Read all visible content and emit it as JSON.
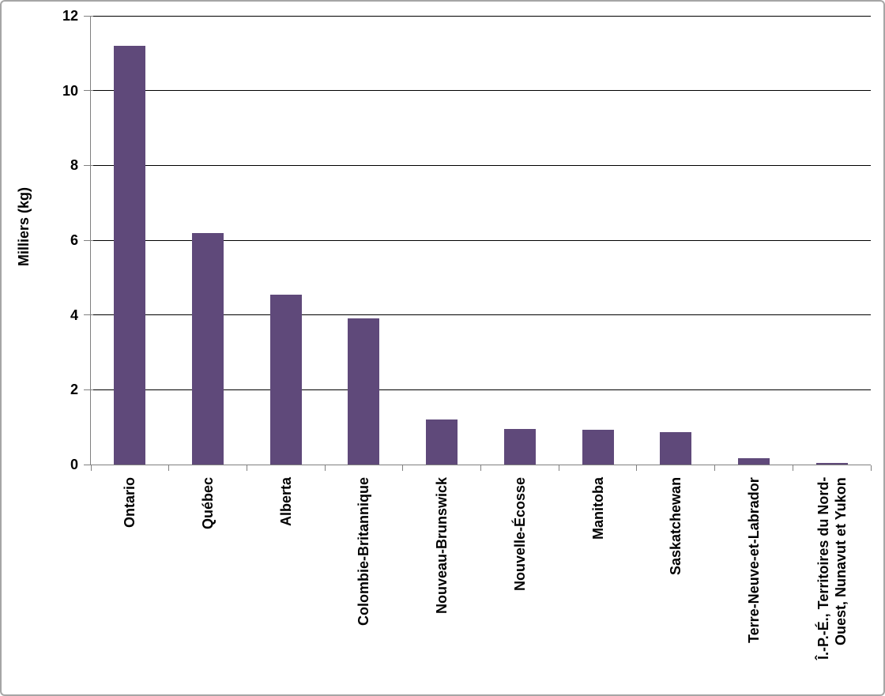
{
  "chart_data": {
    "type": "bar",
    "title": "",
    "xlabel": "",
    "ylabel": "Milliers (kg)",
    "categories": [
      "Ontario",
      "Québec",
      "Alberta",
      "Colombie-Britannique",
      "Nouveau-Brunswick",
      "Nouvelle-Écosse",
      "Manitoba",
      "Saskatchewan",
      "Terre-Neuve-et-Labrador",
      "Î.-P.-É., Territoires du Nord-\nOuest, Nunavut et Yukon"
    ],
    "values": [
      11.2,
      6.2,
      4.55,
      3.9,
      1.2,
      0.95,
      0.93,
      0.87,
      0.17,
      0.04
    ],
    "yticks": [
      0,
      2,
      4,
      6,
      8,
      10,
      12
    ],
    "ylim": [
      0,
      12
    ],
    "grid": true,
    "legend": "none",
    "bar_color": "#5F497A",
    "gridline_color": "#000000",
    "axis_color": "#808080",
    "text_color": "#000000",
    "background_color": "#FFFFFF",
    "border_color": "#A6A6A6"
  }
}
